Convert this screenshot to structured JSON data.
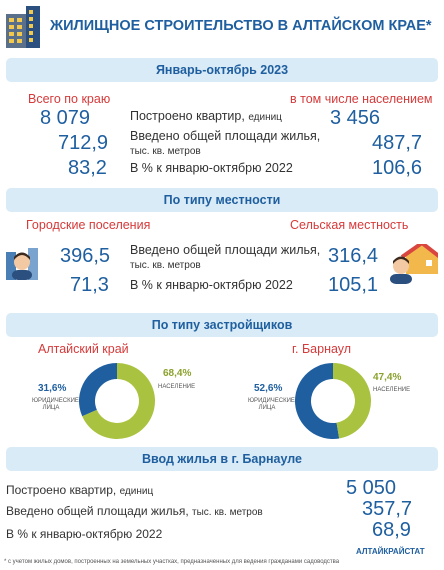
{
  "title": "ЖИЛИЩНОЕ СТРОИТЕЛЬСТВО В АЛТАЙСКОМ КРАЕ*",
  "section1": {
    "header": "Январь-октябрь 2023",
    "left_label": "Всего по краю",
    "right_label": "в том числе населением",
    "rows": [
      {
        "left": "8 079",
        "label_main": "Построено квартир,",
        "label_unit": "единиц",
        "right": "3 456"
      },
      {
        "left": "712,9",
        "label_main": "Введено общей площади жилья,",
        "label_unit": "тыс. кв. метров",
        "right": "487,7"
      },
      {
        "left": "83,2",
        "label_main": "В % к январю-октябрю 2022",
        "label_unit": "",
        "right": "106,6"
      }
    ]
  },
  "section2": {
    "header": "По типу местности",
    "left_label": "Городские поселения",
    "right_label": "Сельская местность",
    "rows": [
      {
        "left": "396,5",
        "label_main": "Введено общей площади жилья,",
        "label_unit": "тыс. кв. метров",
        "right": "316,4"
      },
      {
        "left": "71,3",
        "label_main": "В % к январю-октябрю 2022",
        "label_unit": "",
        "right": "105,1"
      }
    ]
  },
  "section3": {
    "header": "По типу застройщиков",
    "left_chart": {
      "title": "Алтайский край",
      "legal_pct": "31,6%",
      "legal_label_1": "ЮРИДИЧЕСКИЕ",
      "legal_label_2": "ЛИЦА",
      "pop_pct": "68,4%",
      "pop_label": "НАСЕЛЕНИЕ",
      "legal_value": 31.6,
      "pop_value": 68.4
    },
    "right_chart": {
      "title": "г. Барнаул",
      "legal_pct": "52,6%",
      "legal_label_1": "ЮРИДИЧЕСКИЕ",
      "legal_label_2": "ЛИЦА",
      "pop_pct": "47,4%",
      "pop_label": "НАСЕЛЕНИЕ",
      "legal_value": 52.6,
      "pop_value": 47.4
    }
  },
  "section4": {
    "header": "Ввод жилья в г. Барнауле",
    "rows": [
      {
        "label_main": "Построено квартир,",
        "label_unit": "единиц",
        "value": "5 050"
      },
      {
        "label_main": "Введено общей площади жилья,",
        "label_unit": "тыс. кв. метров",
        "value": "357,7"
      },
      {
        "label_main": "В % к январю-октябрю 2022",
        "label_unit": "",
        "value": "68,9"
      }
    ]
  },
  "source": "АЛТАЙКРАЙСТАТ",
  "footnote": "* с учетом жилых домов, построенных на земельных участках, предназначенных для ведения гражданами садоводства",
  "colors": {
    "blue": "#1f5fa0",
    "donut_legal": "#1f5fa0",
    "donut_pop": "#a9c23f",
    "red": "#d63a3a",
    "bar_bg": "#d9ebf6"
  },
  "icons": [
    "building-icon",
    "city-person-icon",
    "village-person-icon"
  ],
  "chart_data": [
    {
      "type": "pie",
      "title": "Алтайский край",
      "categories": [
        "ЮРИДИЧЕСКИЕ ЛИЦА",
        "НАСЕЛЕНИЕ"
      ],
      "values": [
        31.6,
        68.4
      ]
    },
    {
      "type": "pie",
      "title": "г. Барнаул",
      "categories": [
        "ЮРИДИЧЕСКИЕ ЛИЦА",
        "НАСЕЛЕНИЕ"
      ],
      "values": [
        52.6,
        47.4
      ]
    }
  ]
}
